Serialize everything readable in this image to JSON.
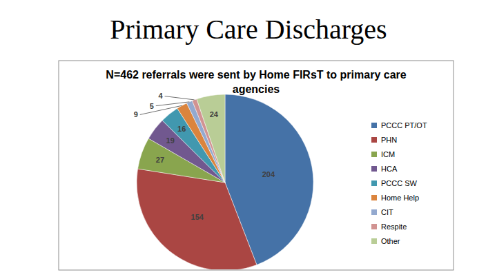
{
  "heading": "Primary Care Discharges",
  "chart_data": {
    "type": "pie",
    "title": "N=462 referrals were sent by Home FIRsT to primary care agencies",
    "categories": [
      "PCCC PT/OT",
      "PHN",
      "ICM",
      "HCA",
      "PCCC SW",
      "Home Help",
      "CIT",
      "Respite",
      "Other"
    ],
    "values": [
      204,
      154,
      27,
      19,
      16,
      9,
      5,
      4,
      24
    ],
    "colors": [
      "#4572a7",
      "#aa4643",
      "#89a54e",
      "#71588f",
      "#4198af",
      "#db843d",
      "#93a9cf",
      "#d19392",
      "#b9cd96"
    ],
    "data_labels": true,
    "legend": "right"
  }
}
